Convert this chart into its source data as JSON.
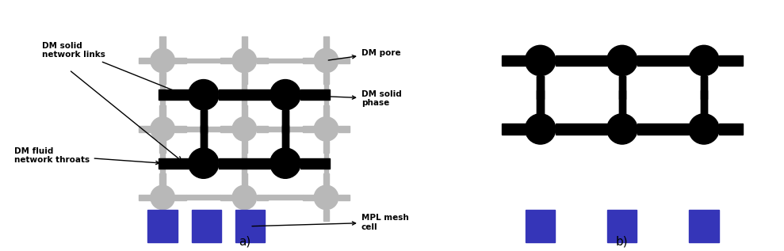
{
  "fig_width": 9.89,
  "fig_height": 3.17,
  "dpi": 100,
  "bg_color": "#ffffff",
  "gray_color": "#b8b8b8",
  "black_color": "#000000",
  "blue_color": "#3535b8",
  "panel_a_label": "a)",
  "panel_b_label": "b)",
  "ann_solid_links": "DM solid\nnetwork links",
  "ann_pore": "DM pore",
  "ann_solid_phase": "DM solid\nphase",
  "ann_fluid_throats": "DM fluid\nnetwork throats",
  "ann_mpl": "MPL mesh\ncell"
}
